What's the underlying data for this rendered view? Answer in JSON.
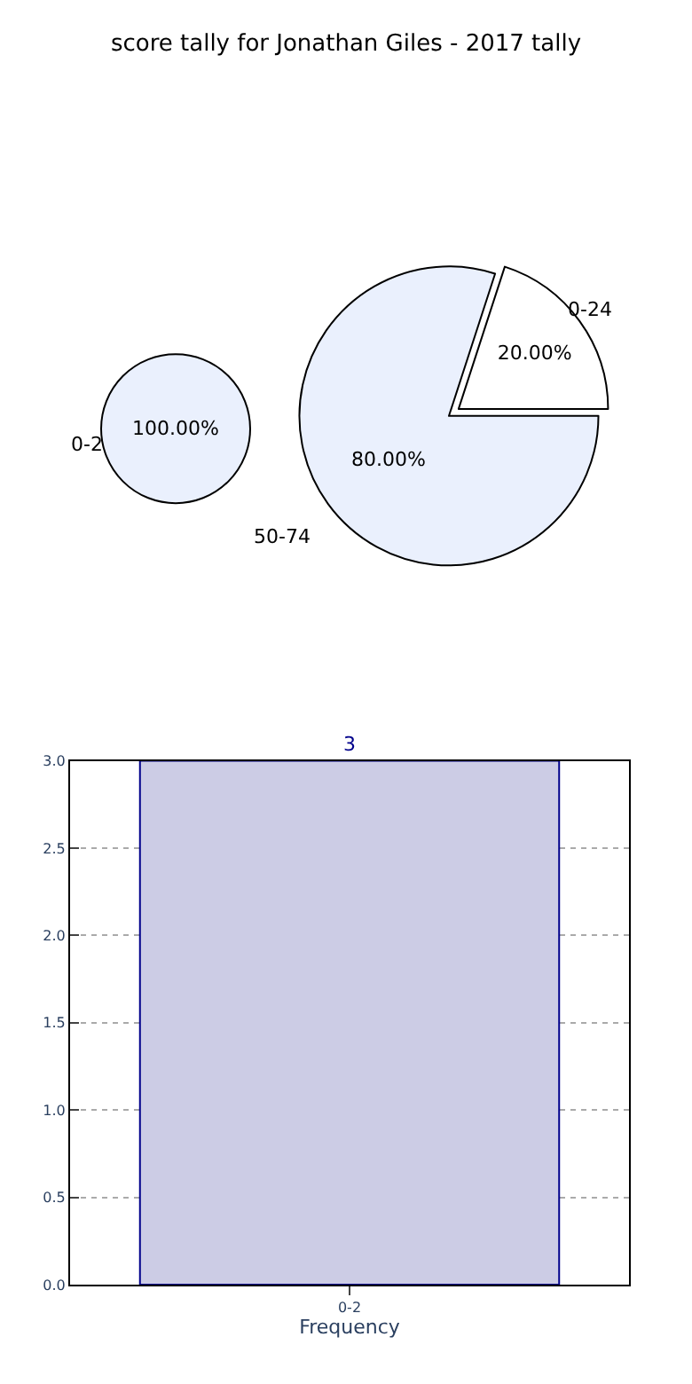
{
  "chart_data": [
    {
      "type": "pie",
      "title": "score tally for Jonathan Giles - 2017 tally",
      "categories": [
        "0-2"
      ],
      "values": [
        100
      ],
      "colors": [
        "#eaf0fd"
      ],
      "value_labels": [
        "100.00%"
      ]
    },
    {
      "type": "pie",
      "categories": [
        "0-24",
        "50-74"
      ],
      "values": [
        20,
        80
      ],
      "colors": [
        "#ffffff",
        "#eaf0fd"
      ],
      "value_labels": [
        "20.00%",
        "80.00%"
      ]
    },
    {
      "type": "bar",
      "categories": [
        "0-2"
      ],
      "values": [
        3
      ],
      "colors": [
        "#ccccE5"
      ],
      "xlabel": "Frequency",
      "ylim": [
        0,
        3.0
      ],
      "yticks": [
        {
          "value": 0,
          "label": "0.0"
        },
        0.5,
        {
          "value": 1,
          "label": "1.0"
        },
        1.5,
        {
          "value": 2,
          "label": "2.0"
        },
        2.5,
        {
          "value": 3,
          "label": "3.0"
        }
      ],
      "grid": true,
      "data_labels": true
    }
  ]
}
